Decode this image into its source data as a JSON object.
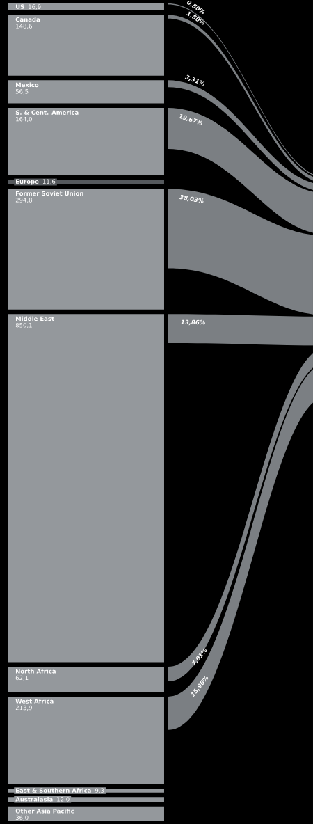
{
  "chart_data": {
    "type": "other",
    "categories": [
      "US",
      "Canada",
      "Mexico",
      "S. & Cent. America",
      "Europe",
      "Former Soviet Union",
      "Middle East",
      "North Africa",
      "West Africa",
      "East & Southern Africa",
      "Australasia",
      "Other Asia Pacific"
    ],
    "series": [
      {
        "colors": [
          "#94989c",
          "#94989c",
          "#94989c",
          "#94989c",
          "#55595d",
          "#94989c",
          "#94989c",
          "#94989c",
          "#94989c",
          "#94989c",
          "#94989c",
          "#94989c"
        ],
        "values": [
          16.9,
          148.6,
          56.5,
          164.0,
          11.6,
          294.8,
          850.1,
          62.1,
          213.9,
          9.3,
          12.0,
          36.0
        ],
        "value_labels": [
          "16,9",
          "148,6",
          "56,5",
          "164,0",
          "11,6",
          "294,8",
          "850,1",
          "62,1",
          "213,9",
          "9,3",
          "12,0",
          "36,0"
        ]
      },
      {
        "color": "#7b7f83",
        "values": [
          0.5,
          1.8,
          3.31,
          19.67,
          null,
          38.03,
          13.86,
          7.01,
          15.96,
          null,
          null,
          null
        ],
        "value_labels": [
          "0,50%",
          "1,80%",
          "3,31%",
          "19,67%",
          null,
          "38,03%",
          "13,86%",
          "7,01%",
          "15,96%",
          null,
          null,
          null
        ]
      }
    ]
  }
}
